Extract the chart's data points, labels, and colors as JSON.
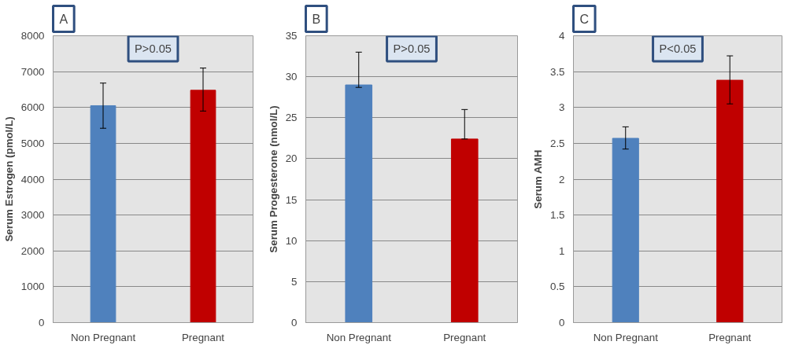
{
  "chart_data": [
    {
      "type": "bar",
      "title": "A",
      "ylabel": "Serum Estrogen (pmol/L)",
      "categories": [
        "Non Pregnant",
        "Pregnant"
      ],
      "values": [
        6050,
        6480
      ],
      "colors": [
        "#4f81bd",
        "#c00000"
      ],
      "errors": [
        [
          5420,
          6680
        ],
        [
          5900,
          7100
        ]
      ],
      "ylim": [
        0,
        8000
      ],
      "yticks": [
        0,
        1000,
        2000,
        3000,
        4000,
        5000,
        6000,
        7000,
        8000
      ],
      "grid": "y",
      "annotations": [
        "P>0.05"
      ]
    },
    {
      "type": "bar",
      "title": "B",
      "ylabel": "Serum Progesterone (nmol/L)",
      "categories": [
        "Non Pregnant",
        "Pregnant"
      ],
      "values": [
        29,
        22.4
      ],
      "colors": [
        "#4f81bd",
        "#c00000"
      ],
      "errors": [
        [
          28.7,
          33
        ],
        [
          22.4,
          26
        ]
      ],
      "ylim": [
        0,
        35
      ],
      "yticks": [
        0,
        5,
        10,
        15,
        20,
        25,
        30,
        35
      ],
      "grid": "y",
      "annotations": [
        "P>0.05"
      ]
    },
    {
      "type": "bar",
      "title": "C",
      "ylabel": "Serum AMH",
      "categories": [
        "Non Pregnant",
        "Pregnant"
      ],
      "values": [
        2.57,
        3.38
      ],
      "colors": [
        "#4f81bd",
        "#c00000"
      ],
      "errors": [
        [
          2.42,
          2.73
        ],
        [
          3.05,
          3.72
        ]
      ],
      "ylim": [
        0,
        4
      ],
      "yticks": [
        0,
        0.5,
        1,
        1.5,
        2,
        2.5,
        3,
        3.5,
        4
      ],
      "grid": "y",
      "annotations": [
        "P<0.05"
      ]
    }
  ]
}
